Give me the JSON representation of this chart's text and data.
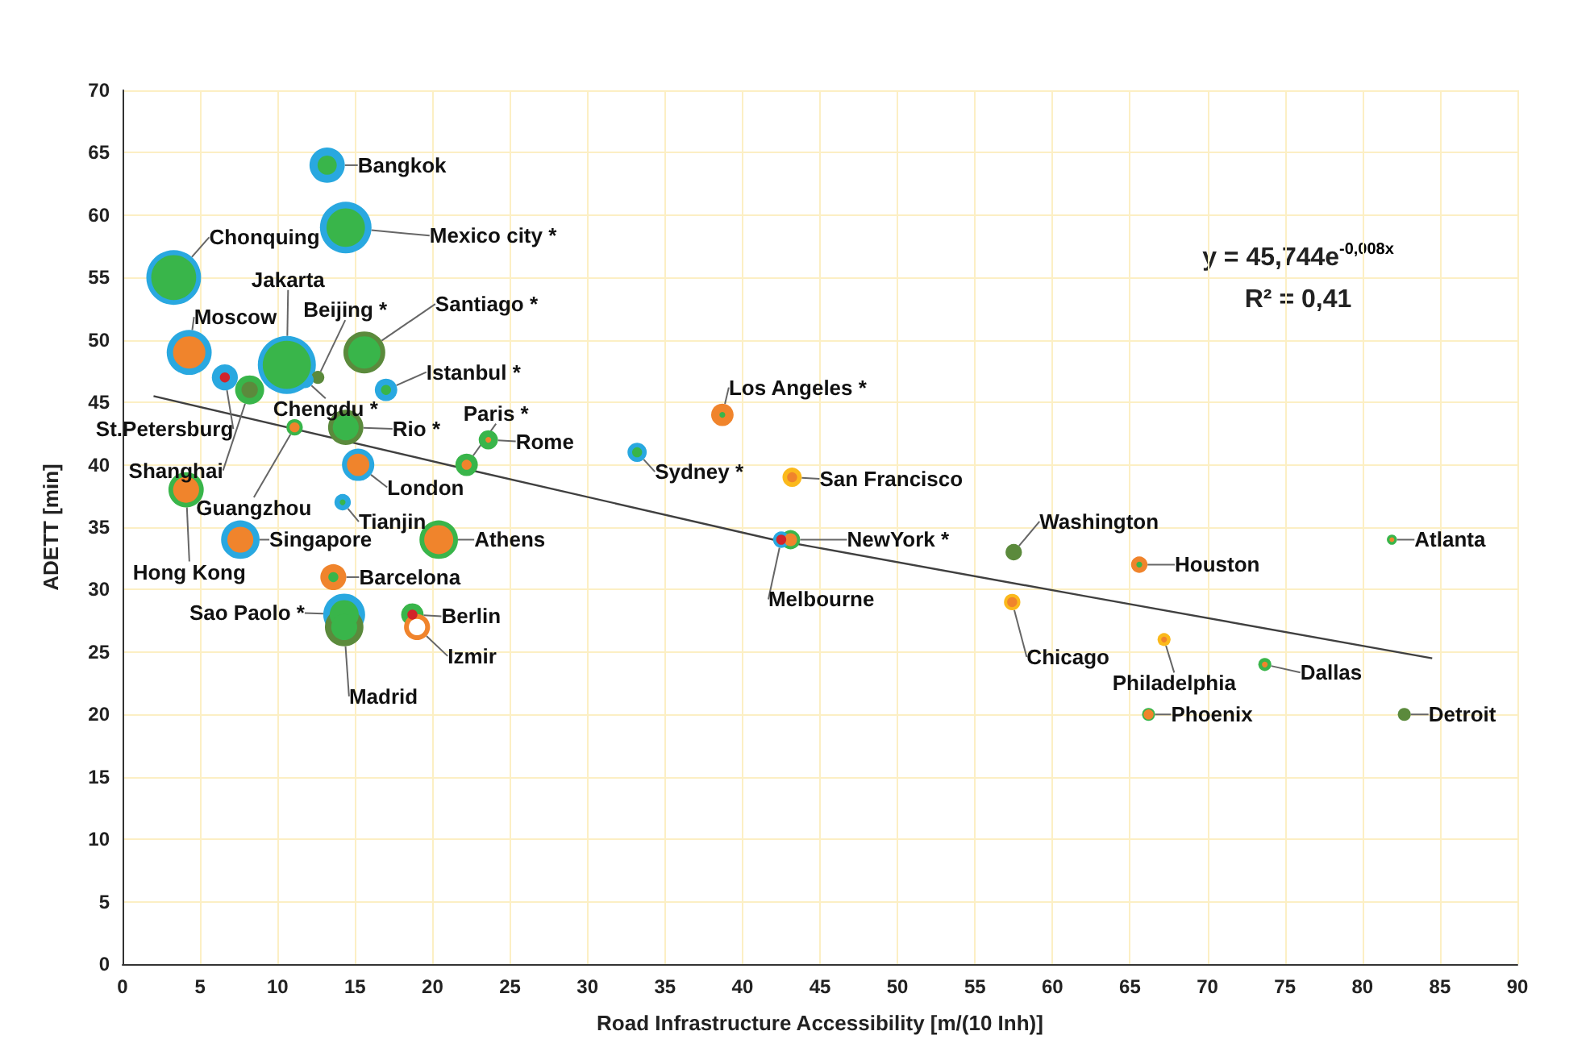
{
  "chart_data": {
    "type": "bubble",
    "xlabel": "Road Infrastructure Accessibility [m/(10 Inh)]",
    "ylabel": "ADETT [min]",
    "xlim": [
      0,
      90
    ],
    "xticks": [
      0,
      5,
      10,
      15,
      20,
      25,
      30,
      35,
      40,
      45,
      50,
      55,
      60,
      65,
      70,
      75,
      80,
      85,
      90
    ],
    "ylim": [
      0,
      70
    ],
    "yticks": [
      0,
      5,
      10,
      15,
      20,
      25,
      30,
      35,
      40,
      45,
      50,
      55,
      60,
      65,
      70
    ],
    "grid": true,
    "marker": "circle",
    "x": [
      13.2,
      14.4,
      3.3,
      10.6,
      4.3,
      12.6,
      15.6,
      6.6,
      8.2,
      17.0,
      11.8,
      14.4,
      22.2,
      23.6,
      15.2,
      11.1,
      14.2,
      4.1,
      7.6,
      20.4,
      13.6,
      14.3,
      14.3,
      18.7,
      19.0,
      38.7,
      33.2,
      43.2,
      43.1,
      42.5,
      57.5,
      65.6,
      81.9,
      57.4,
      67.2,
      73.7,
      66.2,
      82.7
    ],
    "series": [
      {
        "values": [
          64,
          59,
          55,
          48,
          49,
          47,
          49,
          47,
          46,
          46,
          46.8,
          43,
          40,
          42,
          40,
          43,
          37,
          38,
          34,
          34,
          31,
          28,
          27,
          28,
          27,
          44,
          41,
          39,
          34,
          34,
          33,
          32,
          34,
          29,
          26,
          24,
          20,
          20
        ],
        "sizes": [
          0.37,
          0.79,
          0.89,
          1,
          0.6,
          0.05,
          0.52,
          0.2,
          0.25,
          0.15,
          0.08,
          0.37,
          0.15,
          0.11,
          0.31,
          0.08,
          0.08,
          0.37,
          0.44,
          0.44,
          0.2,
          0.52,
          0.44,
          0.15,
          0.2,
          0.15,
          0.11,
          0.11,
          0.11,
          0.08,
          0.08,
          0.08,
          0.03,
          0.08,
          0.05,
          0.05,
          0.05,
          0.05
        ],
        "colors": [
          "#29a8e0",
          "#29a8e0",
          "#29a8e0",
          "#29a8e0",
          "#29a8e0",
          "#5b8a3c",
          "#5b8a3c",
          "#29a8e0",
          "#39b54a",
          "#29a8e0",
          "#29a8e0",
          "#5b8a3c",
          "#39b54a",
          "#39b54a",
          "#29a8e0",
          "#39b54a",
          "#29a8e0",
          "#39b54a",
          "#29a8e0",
          "#39b54a",
          "#f0842c",
          "#29a8e0",
          "#5b8a3c",
          "#39b54a",
          "#f0842c",
          "#f0842c",
          "#29a8e0",
          "#fbb91c",
          "#39b54a",
          "#29a8e0",
          "#5b8a3c",
          "#f0842c",
          "#39b54a",
          "#fbb91c",
          "#fbb91c",
          "#39b54a",
          "#39b54a",
          "#5b8a3c"
        ],
        "value_labels": [
          "Bangkok",
          "Mexico city *",
          "Chonquing",
          "Jakarta",
          "Moscow",
          "Beijing *",
          "Santiago *",
          "St.Petersburg",
          "Shanghai",
          "Istanbul *",
          "Chengdu *",
          "Rio *",
          "Paris *",
          "Rome",
          "London",
          "Guangzhou",
          "Tianjin",
          "Hong Kong",
          "Singapore",
          "Athens",
          "Barcelona",
          "Sao Paolo *",
          "Madrid",
          "Berlin",
          "Izmir",
          "Los Angeles *",
          "Sydney *",
          "San Francisco",
          "NewYork *",
          "Melbourne",
          "Washington",
          "Houston",
          "Atlanta",
          "Chicago",
          "Philadelphia",
          "Dallas",
          "Phoenix",
          "Detroit"
        ]
      },
      {
        "values": [
          64,
          59,
          55,
          48,
          49,
          null,
          49,
          47,
          46,
          46,
          null,
          43,
          40,
          42,
          40,
          43,
          37,
          38,
          34,
          34,
          31,
          28,
          27,
          28,
          27,
          44,
          41,
          39,
          34,
          34,
          null,
          32,
          34,
          29,
          26,
          24,
          20,
          null
        ],
        "sizes": [
          0.11,
          0.44,
          0.6,
          0.69,
          0.31,
          null,
          0.31,
          0.03,
          0.08,
          0.03,
          null,
          0.2,
          0.03,
          0.01,
          0.15,
          0.03,
          0.01,
          0.2,
          0.2,
          0.25,
          0.03,
          0.25,
          0.2,
          0.03,
          0.08,
          0.01,
          0.03,
          0.03,
          0.05,
          0.03,
          null,
          0.01,
          0.007,
          0.03,
          0.01,
          0.01,
          0.03,
          null
        ],
        "colors": [
          "#39b54a",
          "#39b54a",
          "#39b54a",
          "#39b54a",
          "#f0842c",
          null,
          "#39b54a",
          "#d2232a",
          "#5b8a3c",
          "#39b54a",
          null,
          "#39b54a",
          "#f0842c",
          "#f0842c",
          "#f0842c",
          "#f0842c",
          "#39b54a",
          "#f0842c",
          "#f0842c",
          "#f0842c",
          "#39b54a",
          "#39b54a",
          "#39b54a",
          "#d2232a",
          "#ffffff",
          "#39b54a",
          "#39b54a",
          "#f0842c",
          "#f0842c",
          "#d2232a",
          null,
          "#39b54a",
          "#f0842c",
          "#f0842c",
          "#f0842c",
          "#f0842c",
          "#f0842c",
          null
        ]
      },
      {
        "type": "line",
        "marker": "none",
        "x": [
          2,
          22,
          42,
          62,
          84.5
        ],
        "values": [
          45.5,
          39.7,
          34,
          29.5,
          24.5
        ],
        "color": "#404040"
      }
    ],
    "annotations": [
      "y = 45,744e$^{-0,008x}$",
      "R² = 0,41"
    ]
  }
}
